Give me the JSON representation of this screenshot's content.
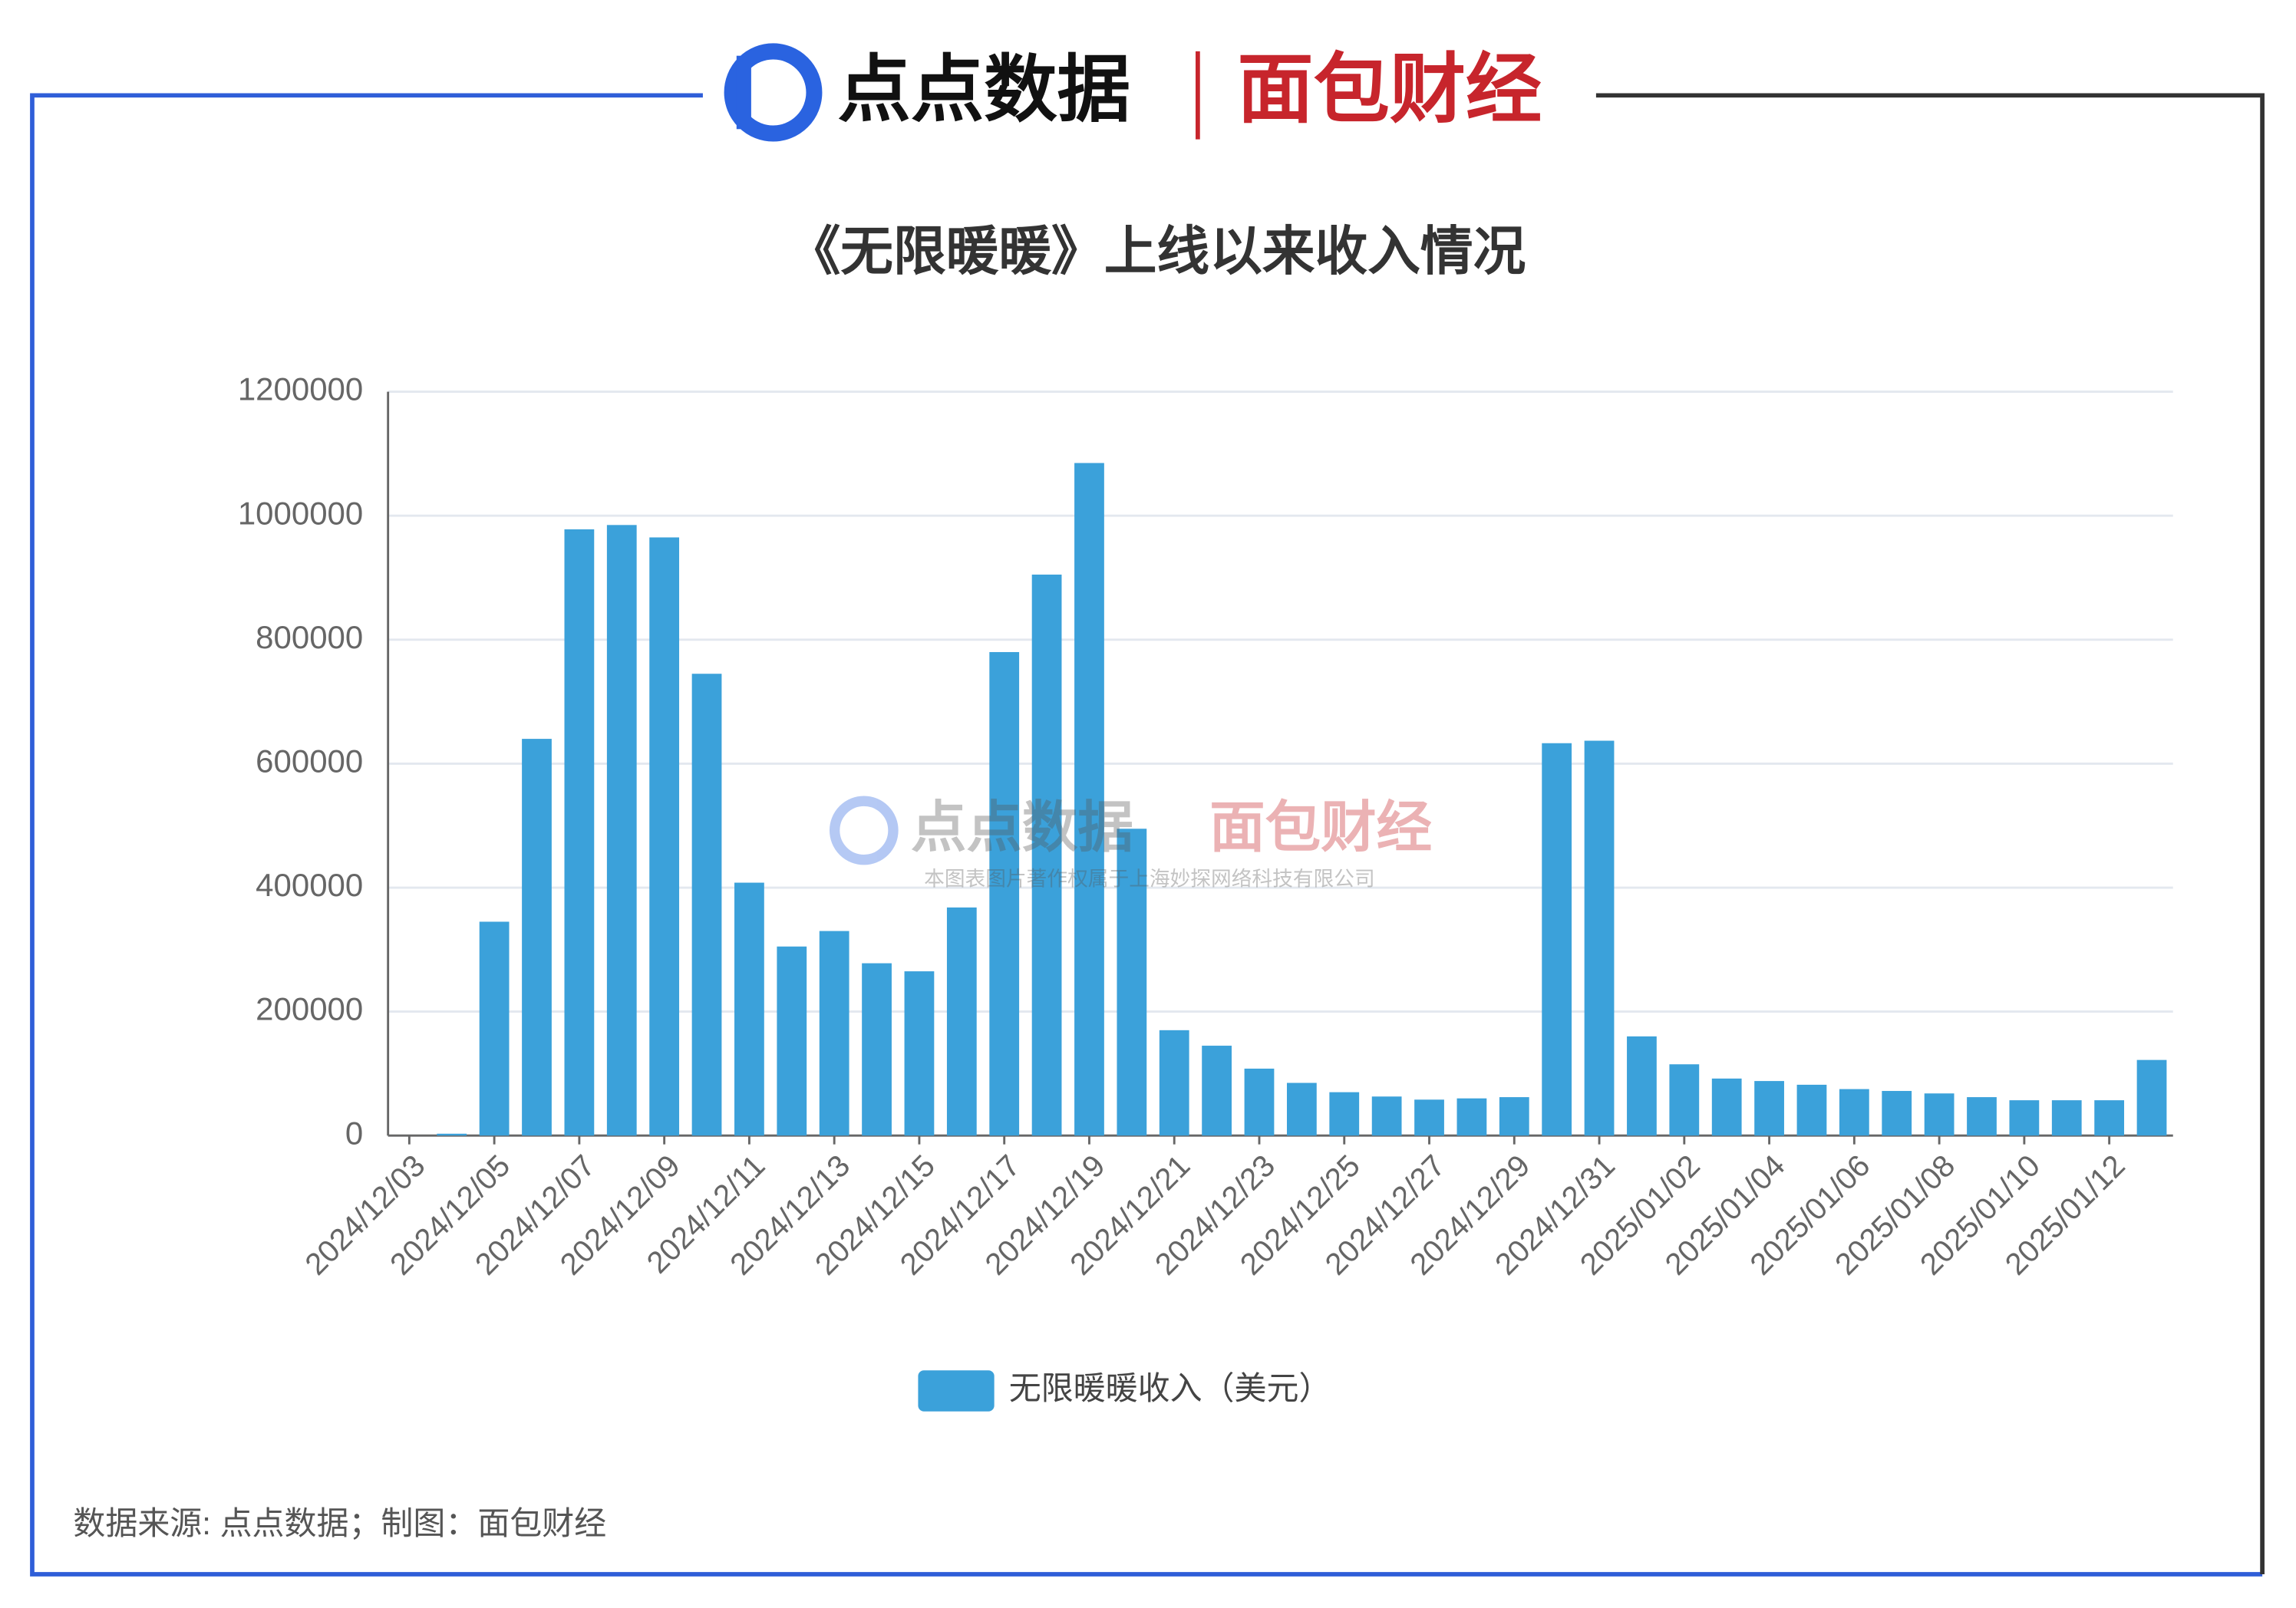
{
  "header": {
    "brand_left": "点点数据",
    "brand_right": "面包财经"
  },
  "chart_data": {
    "type": "bar",
    "title": "《无限暖暖》上线以来收入情况",
    "categories": [
      "2024/12/03",
      null,
      "2024/12/05",
      null,
      "2024/12/07",
      null,
      "2024/12/09",
      null,
      "2024/12/11",
      null,
      "2024/12/13",
      null,
      "2024/12/15",
      null,
      "2024/12/17",
      null,
      "2024/12/19",
      null,
      "2024/12/21",
      null,
      "2024/12/23",
      null,
      "2024/12/25",
      null,
      "2024/12/27",
      null,
      "2024/12/29",
      null,
      "2024/12/31",
      null,
      "2025/01/02",
      null,
      "2025/01/04",
      null,
      "2025/01/06",
      null,
      "2025/01/08",
      null,
      "2025/01/10",
      null,
      "2025/01/12",
      null
    ],
    "series": [
      {
        "name": "无限暖暖收入（美元）",
        "color": "#3ba1da",
        "values": [
          0,
          3000,
          345000,
          640000,
          978000,
          985000,
          965000,
          745000,
          408000,
          305000,
          330000,
          278000,
          265000,
          368000,
          780000,
          905000,
          1085000,
          495000,
          170000,
          145000,
          108000,
          85000,
          70000,
          63000,
          58000,
          60000,
          62000,
          633000,
          637000,
          160000,
          115000,
          92000,
          88000,
          82000,
          75000,
          72000,
          68000,
          62000,
          57000,
          57000,
          57000,
          122000
        ]
      }
    ],
    "ylim": [
      0,
      1200000
    ],
    "yticks": [
      0,
      200000,
      400000,
      600000,
      800000,
      1000000,
      1200000
    ],
    "grid": true,
    "legend": "bottom"
  },
  "watermark": {
    "brand_left": "点点数据",
    "brand_right": "面包财经",
    "notice": "本图表图片著作权属于上海妙探网络科技有限公司"
  },
  "footer": {
    "source": "数据来源: 点点数据；制图：面包财经"
  }
}
